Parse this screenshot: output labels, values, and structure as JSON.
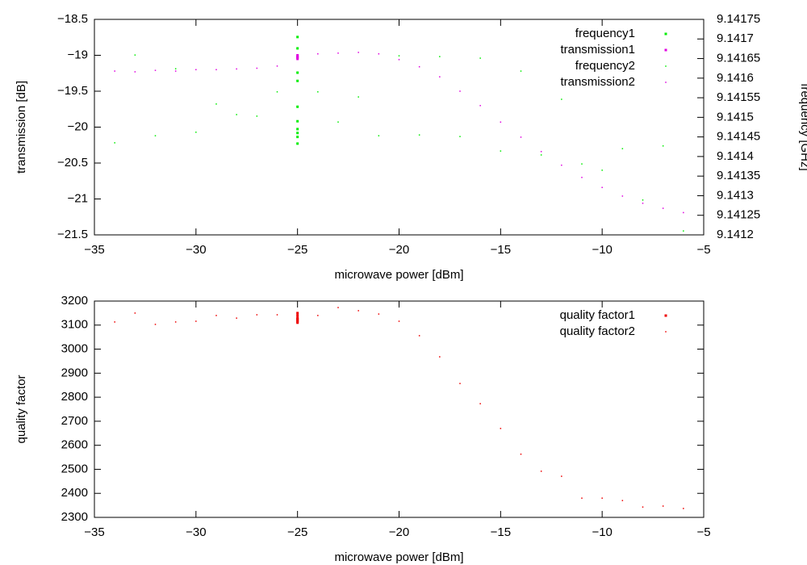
{
  "chart_data": [
    {
      "type": "scatter",
      "xlabel": "microwave power [dBm]",
      "ylabel": "transmission [dB]",
      "y2label": "frequency [GHz]",
      "xlim": [
        -35,
        -5
      ],
      "xticks": [
        {
          "value": -35,
          "label": "−35"
        },
        {
          "value": -30,
          "label": "−30"
        },
        {
          "value": -25,
          "label": "−25"
        },
        {
          "value": -20,
          "label": "−20"
        },
        {
          "value": -15,
          "label": "−15"
        },
        {
          "value": -10,
          "label": "−10"
        },
        {
          "value": -5,
          "label": "−5"
        }
      ],
      "ylim": [
        -21.5,
        -18.5
      ],
      "yticks": [
        {
          "value": -18.5,
          "label": "−18.5"
        },
        {
          "value": -19,
          "label": "−19"
        },
        {
          "value": -19.5,
          "label": "−19.5"
        },
        {
          "value": -20,
          "label": "−20"
        },
        {
          "value": -20.5,
          "label": "−20.5"
        },
        {
          "value": -21,
          "label": "−21"
        },
        {
          "value": -21.5,
          "label": "−21.5"
        }
      ],
      "y2lim": [
        9.1412,
        9.14175
      ],
      "y2ticks": [
        9.14175,
        9.1417,
        9.14165,
        9.1416,
        9.14155,
        9.1415,
        9.14145,
        9.1414,
        9.14135,
        9.1413,
        9.14125,
        9.1412
      ],
      "legend": "top right",
      "series": [
        {
          "name": "frequency1",
          "color": "#00ee00",
          "axis": "y2",
          "point_size": 3,
          "x": [
            -25,
            -25,
            -25,
            -25,
            -25,
            -25,
            -25,
            -25,
            -25,
            -25
          ],
          "values": [
            9.141705,
            9.141676,
            9.141614,
            9.141593,
            9.141527,
            9.14149,
            9.14147,
            9.14146,
            9.14145,
            9.141433
          ]
        },
        {
          "name": "transmission1",
          "color": "#e000e0",
          "point_size": 3,
          "x": [
            -25,
            -25,
            -25,
            -25
          ],
          "values": [
            -19.0,
            -19.02,
            -19.03,
            -19.05
          ]
        },
        {
          "name": "frequency2",
          "color": "#00ee00",
          "axis": "y2",
          "point_size": 1.5,
          "x": [
            -34,
            -33,
            -32,
            -31,
            -30,
            -29,
            -28,
            -27,
            -26,
            -24,
            -23,
            -22,
            -21,
            -20,
            -19,
            -18,
            -17,
            -16,
            -15,
            -14,
            -13,
            -12,
            -11,
            -10,
            -9,
            -8,
            -7,
            -6
          ],
          "values": [
            9.141435,
            9.141659,
            9.141453,
            9.141624,
            9.141462,
            9.141534,
            9.141507,
            9.141503,
            9.141565,
            9.141565,
            9.141488,
            9.141552,
            9.141453,
            9.141657,
            9.141455,
            9.141655,
            9.141451,
            9.141651,
            9.141414,
            9.141618,
            9.141404,
            9.141546,
            9.141381,
            9.141365,
            9.14142,
            9.141289,
            9.141427,
            9.14121
          ]
        },
        {
          "name": "transmission2",
          "color": "#e000e0",
          "point_size": 1.5,
          "x": [
            -34,
            -33,
            -32,
            -31,
            -30,
            -29,
            -28,
            -27,
            -26,
            -24,
            -23,
            -22,
            -21,
            -20,
            -19,
            -18,
            -17,
            -16,
            -15,
            -14,
            -13,
            -12,
            -11,
            -10,
            -9,
            -8,
            -7,
            -6
          ],
          "values": [
            -19.22,
            -19.23,
            -19.21,
            -19.22,
            -19.2,
            -19.2,
            -19.19,
            -19.18,
            -19.15,
            -18.98,
            -18.97,
            -18.96,
            -18.98,
            -19.06,
            -19.16,
            -19.3,
            -19.5,
            -19.7,
            -19.93,
            -20.14,
            -20.34,
            -20.53,
            -20.7,
            -20.84,
            -20.96,
            -21.06,
            -21.13,
            -21.19
          ]
        }
      ]
    },
    {
      "type": "scatter",
      "xlabel": "microwave power [dBm]",
      "ylabel": "quality factor",
      "xlim": [
        -35,
        -5
      ],
      "xticks": [
        {
          "value": -35,
          "label": "−35"
        },
        {
          "value": -30,
          "label": "−30"
        },
        {
          "value": -25,
          "label": "−25"
        },
        {
          "value": -20,
          "label": "−20"
        },
        {
          "value": -15,
          "label": "−15"
        },
        {
          "value": -10,
          "label": "−10"
        },
        {
          "value": -5,
          "label": "−5"
        }
      ],
      "ylim": [
        2300,
        3200
      ],
      "yticks": [
        3200,
        3100,
        3000,
        2900,
        2800,
        2700,
        2600,
        2500,
        2400,
        2300
      ],
      "legend": "top right",
      "series": [
        {
          "name": "quality factor1",
          "color": "#ee0000",
          "point_size": 3,
          "x": [
            -25,
            -25,
            -25,
            -25,
            -25,
            -25,
            -25
          ],
          "values": [
            3150,
            3140,
            3130,
            3125,
            3120,
            3115,
            3110
          ]
        },
        {
          "name": "quality factor2",
          "color": "#ee0000",
          "point_size": 1.5,
          "x": [
            -34,
            -33,
            -32,
            -31,
            -30,
            -29,
            -28,
            -27,
            -26,
            -24,
            -23,
            -22,
            -21,
            -20,
            -19,
            -18,
            -17,
            -16,
            -15,
            -14,
            -13,
            -12,
            -11,
            -10,
            -9,
            -8,
            -7,
            -6
          ],
          "values": [
            3113,
            3150,
            3103,
            3113,
            3116,
            3140,
            3129,
            3143,
            3143,
            3140,
            3173,
            3160,
            3146,
            3116,
            3056,
            2968,
            2857,
            2773,
            2670,
            2563,
            2492,
            2471,
            2380,
            2380,
            2370,
            2343,
            2347,
            2337
          ]
        }
      ]
    }
  ]
}
